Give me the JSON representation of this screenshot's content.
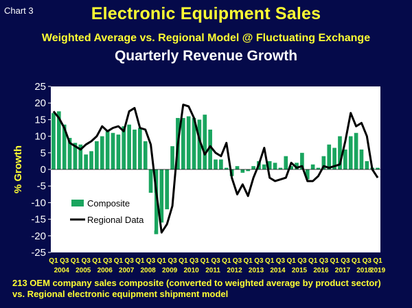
{
  "header": {
    "chart_number": "Chart 3",
    "title": "Electronic Equipment Sales",
    "subtitle": "Weighted Average vs. Regional Model @ Fluctuating Exchange",
    "chart_title": "Quarterly Revenue Growth"
  },
  "footnote": {
    "line1": "213 OEM company sales composite (converted to weighted average by product sector)",
    "line2": "vs. Regional electronic equipment shipment model"
  },
  "colors": {
    "background": "#050a4a",
    "plot_area": "#ffffff",
    "title": "#ffff33",
    "bars": "#1aa55f",
    "line": "#000000"
  },
  "chart_data": {
    "type": "bar",
    "ylabel": "% Growth",
    "ylim": [
      -25,
      25
    ],
    "yticks": [
      25,
      20,
      15,
      10,
      5,
      0,
      -5,
      -10,
      -15,
      -20,
      -25
    ],
    "grid": false,
    "legend_position": "lower-left",
    "quarter_labels": [
      "Q1",
      "Q3"
    ],
    "quarter_label_last": "Q1",
    "years": [
      "2004",
      "2005",
      "2006",
      "2007",
      "2008",
      "2009",
      "2010",
      "2011",
      "2012",
      "2013",
      "2014",
      "2015",
      "2016",
      "2017",
      "2018",
      "2019"
    ],
    "categories": [
      "2004Q1",
      "2004Q2",
      "2004Q3",
      "2004Q4",
      "2005Q1",
      "2005Q2",
      "2005Q3",
      "2005Q4",
      "2006Q1",
      "2006Q2",
      "2006Q3",
      "2006Q4",
      "2007Q1",
      "2007Q2",
      "2007Q3",
      "2007Q4",
      "2008Q1",
      "2008Q2",
      "2008Q3",
      "2008Q4",
      "2009Q1",
      "2009Q2",
      "2009Q3",
      "2009Q4",
      "2010Q1",
      "2010Q2",
      "2010Q3",
      "2010Q4",
      "2011Q1",
      "2011Q2",
      "2011Q3",
      "2011Q4",
      "2012Q1",
      "2012Q2",
      "2012Q3",
      "2012Q4",
      "2013Q1",
      "2013Q2",
      "2013Q3",
      "2013Q4",
      "2014Q1",
      "2014Q2",
      "2014Q3",
      "2014Q4",
      "2015Q1",
      "2015Q2",
      "2015Q3",
      "2015Q4",
      "2016Q1",
      "2016Q2",
      "2016Q3",
      "2016Q4",
      "2017Q1",
      "2017Q2",
      "2017Q3",
      "2017Q4",
      "2018Q1",
      "2018Q2",
      "2018Q3",
      "2018Q4",
      "2019Q1"
    ],
    "series": [
      {
        "name": "Composite",
        "style": "bar",
        "values": [
          17.0,
          17.5,
          13.5,
          9.5,
          8.0,
          7.5,
          4.5,
          5.5,
          8.5,
          10.0,
          11.5,
          11.0,
          10.5,
          13.0,
          13.5,
          12.0,
          12.5,
          8.5,
          -7.5,
          -19.5,
          -16.0,
          -12.0,
          7.0,
          15.5,
          15.5,
          16.0,
          15.5,
          15.0,
          16.5,
          12.0,
          3.0,
          3.0,
          0.5,
          -2.0,
          1.0,
          -1.0,
          -0.5,
          1.0,
          2.5,
          1.5,
          2.5,
          2.0,
          0.5,
          4.0,
          1.0,
          2.0,
          5.0,
          -3.0,
          1.5,
          0.5,
          4.0,
          7.5,
          6.5,
          10.0,
          6.0,
          10.0,
          11.0,
          6.0,
          2.5,
          0.5,
          0.5
        ]
      },
      {
        "name": "Regional Data",
        "style": "line",
        "values": [
          17.5,
          15.5,
          12.5,
          8.0,
          7.0,
          6.0,
          7.5,
          8.5,
          10.0,
          13.0,
          11.5,
          12.5,
          13.0,
          11.5,
          17.5,
          18.5,
          12.5,
          12.0,
          7.5,
          -6.5,
          -19.0,
          -16.5,
          -11.0,
          7.5,
          19.5,
          19.0,
          15.5,
          9.0,
          4.5,
          7.0,
          5.0,
          4.0,
          8.0,
          -2.5,
          -7.5,
          -4.5,
          -8.0,
          -2.5,
          1.5,
          6.5,
          -2.5,
          -3.5,
          -3.0,
          -2.5,
          2.0,
          0.5,
          1.0,
          -3.5,
          -3.5,
          -2.0,
          1.0,
          0.5,
          1.0,
          1.5,
          8.5,
          17.0,
          13.0,
          14.0,
          10.0,
          0.0,
          -2.5
        ]
      }
    ]
  }
}
